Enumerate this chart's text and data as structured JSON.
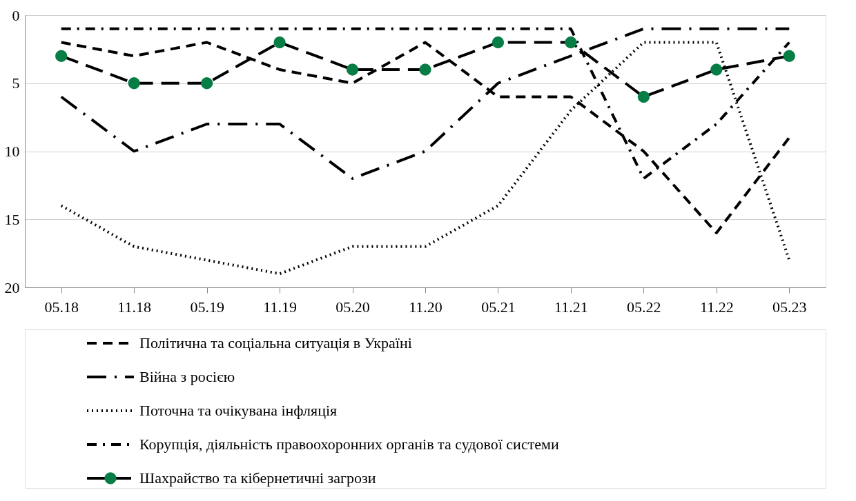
{
  "chart_data": {
    "type": "line",
    "categories": [
      "05.18",
      "11.18",
      "05.19",
      "11.19",
      "05.20",
      "11.20",
      "05.21",
      "11.21",
      "05.22",
      "11.22",
      "05.23"
    ],
    "series": [
      {
        "name": "Політична та соціальна ситуація в Україні",
        "color": "#000000",
        "line_style": "dashed",
        "values": [
          2,
          3,
          2,
          4,
          5,
          2,
          6,
          6,
          10,
          16,
          9
        ]
      },
      {
        "name": "Війна з росією",
        "color": "#000000",
        "line_style": "longdashdot",
        "values": [
          6,
          10,
          8,
          8,
          12,
          10,
          5,
          3,
          1,
          1,
          1
        ]
      },
      {
        "name": "Поточна та очікувана інфляція",
        "color": "#000000",
        "line_style": "dotted",
        "values": [
          14,
          17,
          18,
          19,
          17,
          17,
          14,
          7,
          2,
          2,
          18
        ]
      },
      {
        "name": "Корупція, діяльність правоохоронних органів та судової системи",
        "color": "#000000",
        "line_style": "dashdot",
        "values": [
          1,
          1,
          1,
          1,
          1,
          1,
          1,
          1,
          12,
          8,
          2
        ]
      },
      {
        "name": "Шахрайство та кібернетичні загрози",
        "color": "#000000",
        "line_style": "longdash",
        "marker": "circle",
        "colors": [
          "#067d45",
          "#067d45",
          "#067d45",
          "#067d45",
          "#067d45",
          "#067d45",
          "#067d45",
          "#067d45",
          "#067d45",
          "#067d45",
          "#067d45"
        ],
        "values": [
          3,
          5,
          5,
          2,
          4,
          4,
          2,
          2,
          6,
          4,
          3
        ]
      }
    ],
    "ylim": [
      20,
      0
    ],
    "yticks": [
      0,
      5,
      10,
      15,
      20
    ],
    "grid": "y",
    "legend": "bottom"
  }
}
